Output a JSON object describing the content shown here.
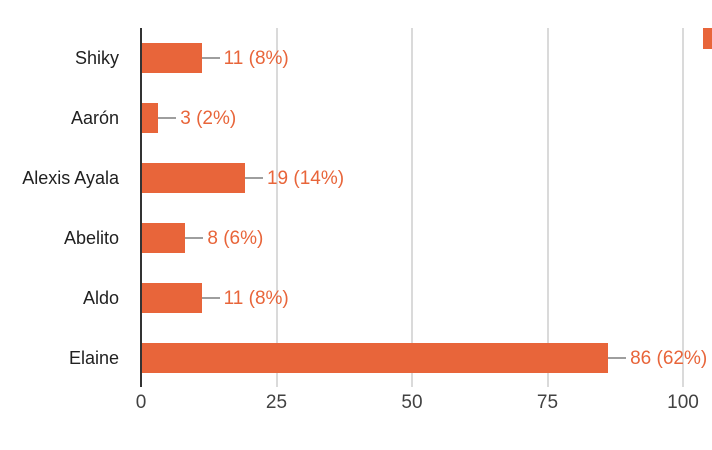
{
  "chart_data": {
    "type": "bar",
    "orientation": "horizontal",
    "title": "",
    "xlabel": "",
    "ylabel": "",
    "categories": [
      "Shiky",
      "Aarón",
      "Alexis Ayala",
      "Abelito",
      "Aldo",
      "Elaine"
    ],
    "values": [
      11,
      3,
      19,
      8,
      11,
      86
    ],
    "value_labels": [
      "11 (8%)",
      "3 (2%)",
      "19 (14%)",
      "8 (6%)",
      "11 (8%)",
      "86 (62%)"
    ],
    "percentages": [
      8,
      2,
      14,
      6,
      8,
      62
    ],
    "xticks": [
      0,
      25,
      50,
      75,
      100
    ],
    "xtick_labels": [
      "0",
      "25",
      "50",
      "75",
      "100"
    ],
    "xlim": [
      0,
      100
    ],
    "grid": true,
    "legend": false,
    "colors": {
      "bar": "#E8653A",
      "value_label": "#E8653A",
      "gridline": "#DADADA",
      "axis_line": "#333333",
      "connector": "#9E9E9E",
      "category_label": "#212121",
      "tick_label": "#424242",
      "background": "#ffffff"
    }
  },
  "misc": {
    "clipped_right_edge_element": "partial orange rectangle clipped at right edge"
  }
}
